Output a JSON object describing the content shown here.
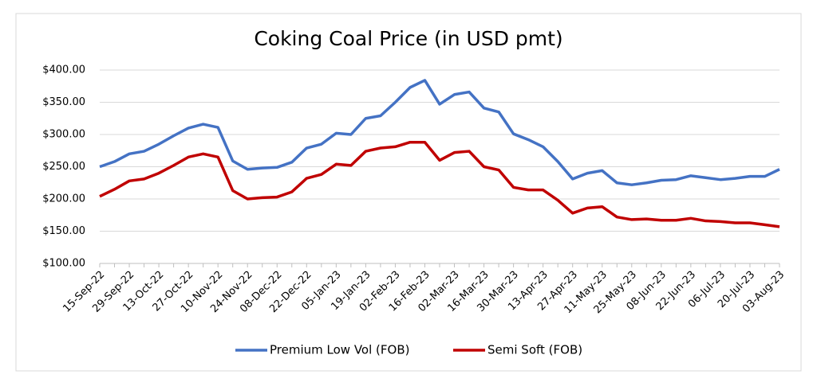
{
  "chart_data": {
    "type": "line",
    "title": "Coking Coal Price (in USD pmt)",
    "categories": [
      "15-Sep-22",
      null,
      "29-Sep-22",
      null,
      "13-Oct-22",
      null,
      "27-Oct-22",
      null,
      "10-Nov-22",
      null,
      "24-Nov-22",
      null,
      "08-Dec-22",
      null,
      "22-Dec-22",
      null,
      "05-Jan-23",
      null,
      "19-Jan-23",
      null,
      "02-Feb-23",
      null,
      "16-Feb-23",
      null,
      "02-Mar-23",
      null,
      "16-Mar-23",
      null,
      "30-Mar-23",
      null,
      "13-Apr-23",
      null,
      "27-Apr-23",
      null,
      "11-May-23",
      null,
      "25-May-23",
      null,
      "08-Jun-23",
      null,
      "22-Jun-23",
      null,
      "06-Jul-23",
      null,
      "20-Jul-23",
      null,
      "03-Aug-23"
    ],
    "series": [
      {
        "name": "Premium Low Vol (FOB)",
        "color": "#4472c4",
        "values": [
          250,
          258,
          270,
          274,
          285,
          298,
          310,
          316,
          311,
          259,
          246,
          248,
          249,
          257,
          279,
          285,
          302,
          300,
          325,
          329,
          350,
          373,
          384,
          347,
          362,
          366,
          341,
          335,
          301,
          292,
          281,
          258,
          231,
          240,
          244,
          225,
          222,
          225,
          229,
          230,
          236,
          233,
          230,
          232,
          235,
          235,
          246
        ]
      },
      {
        "name": "Semi Soft (FOB)",
        "color": "#c00000",
        "values": [
          204,
          215,
          228,
          231,
          240,
          252,
          265,
          270,
          265,
          213,
          200,
          202,
          203,
          211,
          232,
          238,
          254,
          252,
          274,
          279,
          281,
          288,
          288,
          260,
          272,
          274,
          250,
          245,
          218,
          214,
          214,
          198,
          178,
          186,
          188,
          172,
          168,
          169,
          167,
          167,
          170,
          166,
          165,
          163,
          163,
          160,
          157
        ]
      }
    ],
    "ylim": [
      100,
      400
    ],
    "yticks": [
      {
        "value": 100,
        "label": "$100.00"
      },
      {
        "value": 150,
        "label": "$150.00"
      },
      {
        "value": 200,
        "label": "$200.00"
      },
      {
        "value": 250,
        "label": "$250.00"
      },
      {
        "value": 300,
        "label": "$300.00"
      },
      {
        "value": 350,
        "label": "$350.00"
      },
      {
        "value": 400,
        "label": "$400.00"
      }
    ],
    "grid": true,
    "legend": "bottom"
  }
}
